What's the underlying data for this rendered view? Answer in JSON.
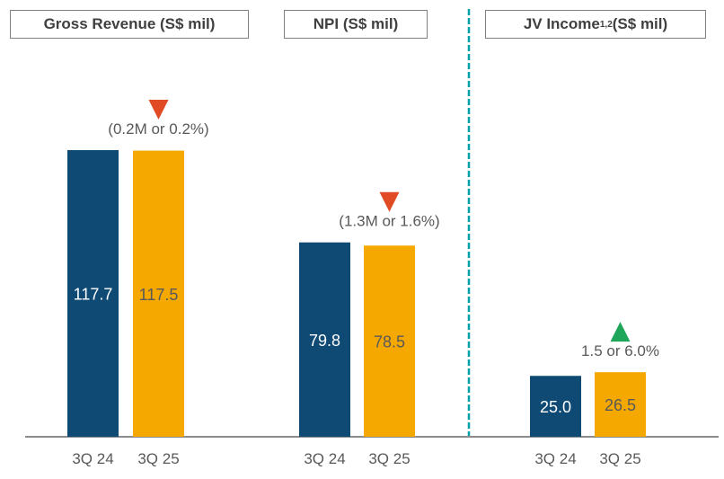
{
  "colors": {
    "3Q 24": "#0f4a74",
    "3Q 25": "#f5a800",
    "decrease": "#e04a25",
    "increase": "#1fa65a",
    "divider": "#00a0a8"
  },
  "chart_data": [
    {
      "type": "bar",
      "title": "Gross Revenue (S$ mil)",
      "categories": [
        "3Q 24",
        "3Q 25"
      ],
      "values": [
        117.7,
        117.5
      ],
      "value_labels": [
        "117.7",
        "117.5"
      ],
      "change": {
        "direction": "down",
        "label": "(0.2M or 0.2%)"
      }
    },
    {
      "type": "bar",
      "title": "NPI (S$ mil)",
      "categories": [
        "3Q 24",
        "3Q 25"
      ],
      "values": [
        79.8,
        78.5
      ],
      "value_labels": [
        "79.8",
        "78.5"
      ],
      "change": {
        "direction": "down",
        "label": "(1.3M or 1.6%)"
      }
    },
    {
      "type": "bar",
      "title": "JV Income",
      "title_sup": "1,2",
      "title_suffix": " (S$ mil)",
      "categories": [
        "3Q 24",
        "3Q 25"
      ],
      "values": [
        25.0,
        26.5
      ],
      "value_labels": [
        "25.0",
        "26.5"
      ],
      "change": {
        "direction": "up",
        "label": "1.5 or 6.0%"
      }
    }
  ]
}
